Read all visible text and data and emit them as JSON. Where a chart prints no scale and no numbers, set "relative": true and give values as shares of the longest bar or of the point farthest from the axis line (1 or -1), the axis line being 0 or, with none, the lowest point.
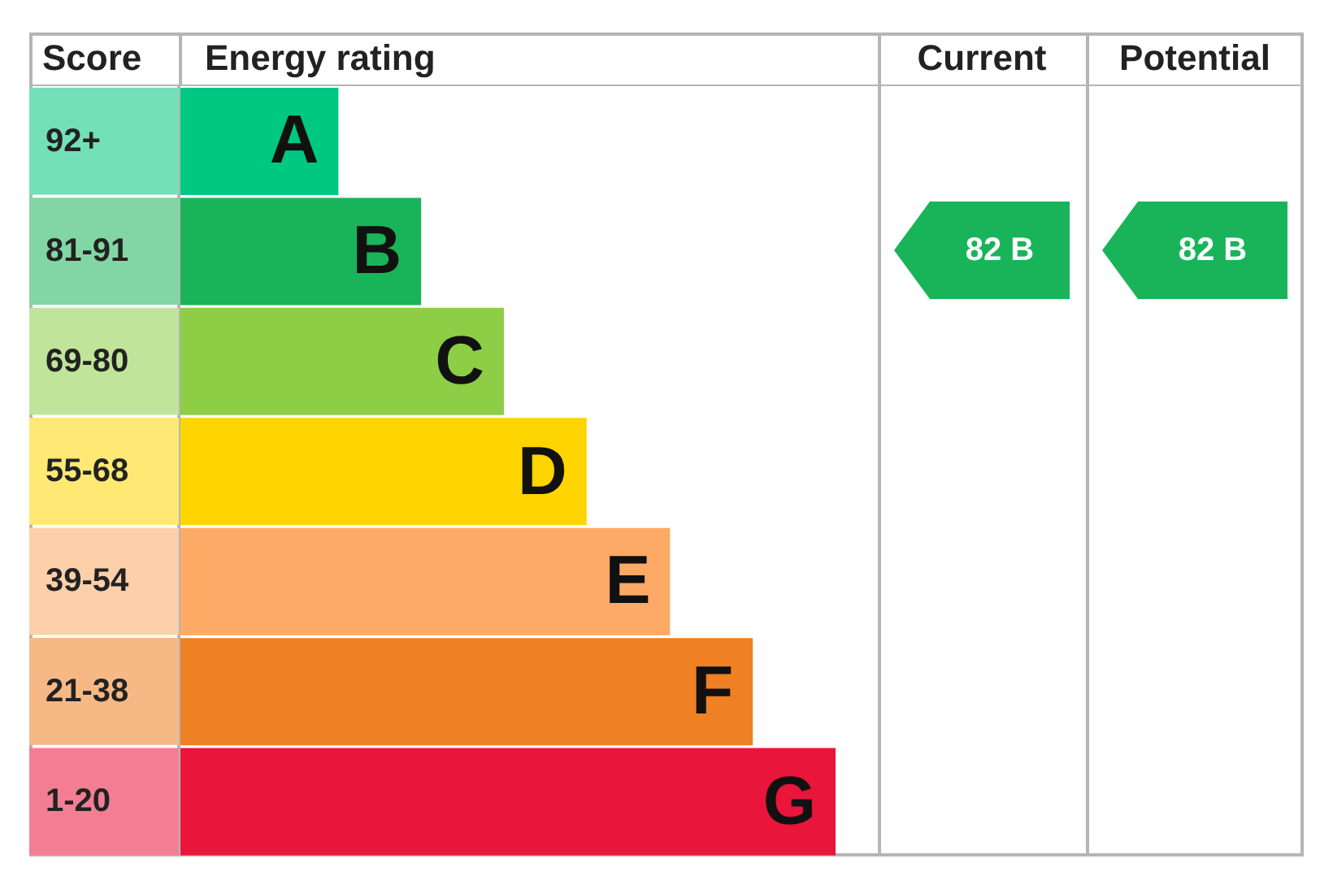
{
  "chart_data": {
    "type": "bar",
    "orientation": "horizontal",
    "relative": true,
    "xlabel": "Energy rating",
    "ylabel": "Score",
    "categories": [
      "92+",
      "81-91",
      "69-80",
      "55-68",
      "39-54",
      "21-38",
      "1-20"
    ],
    "values": [
      0.243,
      0.369,
      0.495,
      0.621,
      0.748,
      0.874,
      1
    ],
    "colors": [
      "#00c781",
      "#19b459",
      "#8dce46",
      "#ffd500",
      "#fcaa65",
      "#ef8023",
      "#e9153b"
    ],
    "annotations": [
      "Current",
      "Potential",
      "82 B",
      "82 B",
      {
        "text": "A",
        "x": 0.243,
        "y": "92+"
      },
      {
        "text": "B",
        "x": 0.369,
        "y": "81-91"
      },
      {
        "text": "C",
        "x": 0.495,
        "y": "69-80"
      },
      {
        "text": "D",
        "x": 0.621,
        "y": "55-68"
      },
      {
        "text": "E",
        "x": 0.748,
        "y": "39-54"
      },
      {
        "text": "F",
        "x": 0.874,
        "y": "21-38"
      },
      {
        "text": "G",
        "x": 1,
        "y": "1-20"
      }
    ]
  }
}
